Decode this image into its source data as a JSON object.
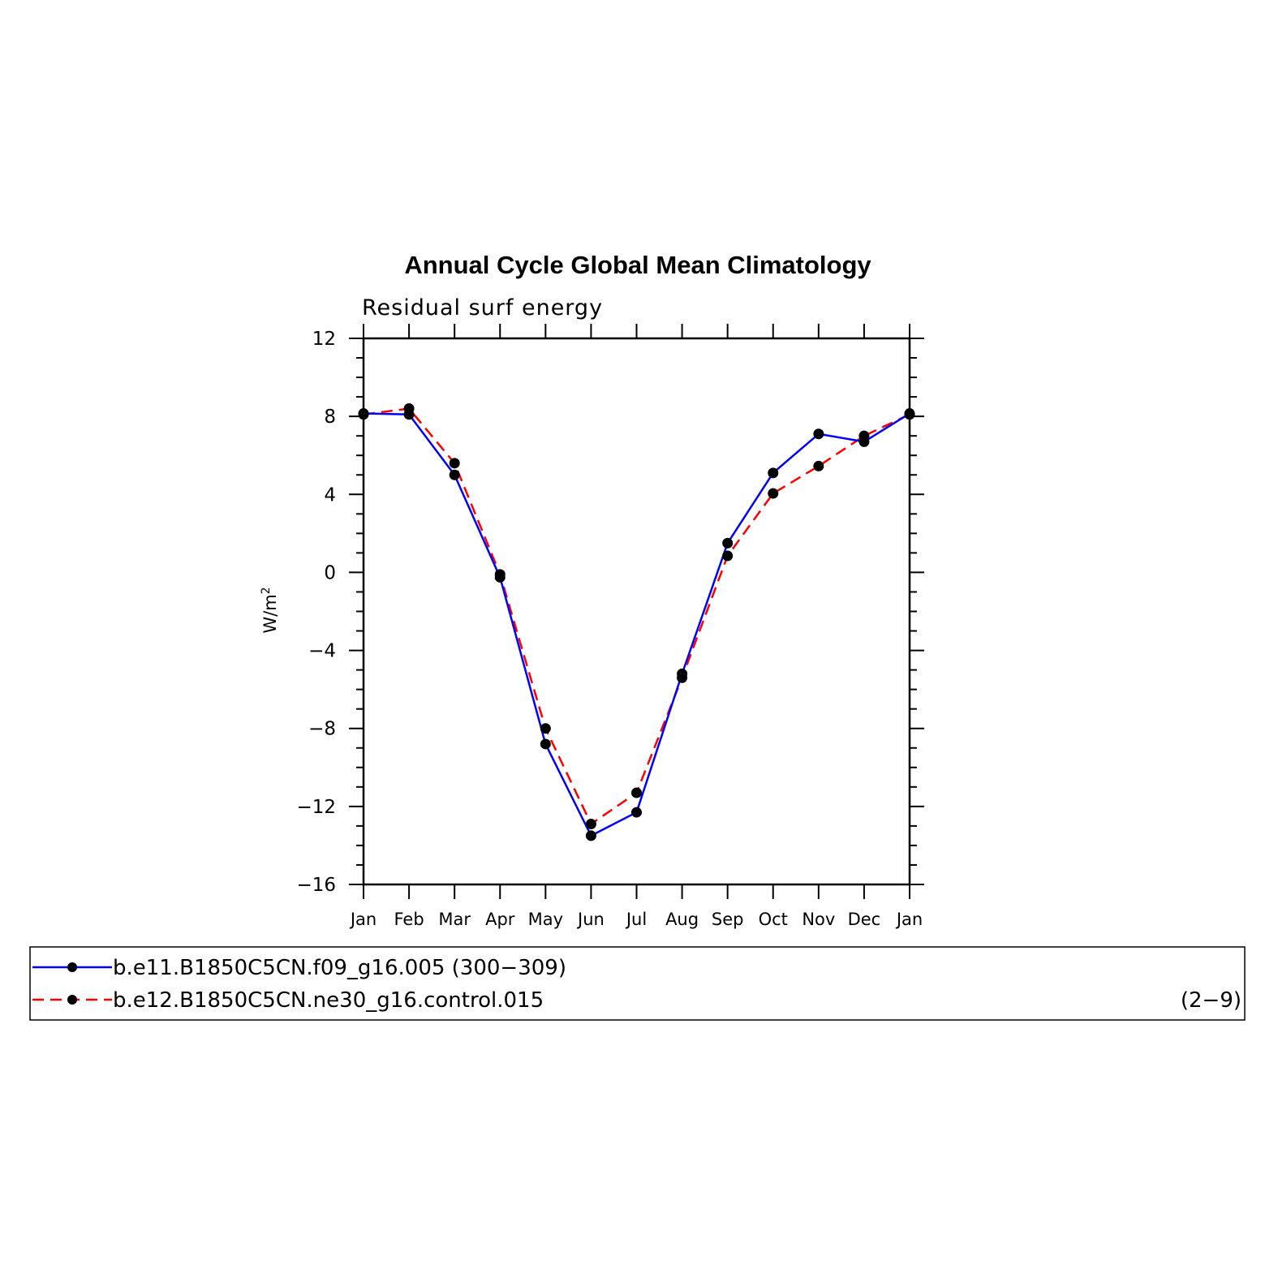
{
  "chart_data": {
    "type": "line",
    "title": "Annual Cycle Global Mean Climatology",
    "subtitle": "Residual surf energy",
    "ylabel": "W/m",
    "ylabel_superscript": "2",
    "xlabel": "",
    "ylim": [
      -16,
      12
    ],
    "yticks": [
      "12",
      "8",
      "4",
      "0",
      "−4",
      "−8",
      "−12",
      "−16"
    ],
    "ytick_values": [
      12,
      8,
      4,
      0,
      -4,
      -8,
      -12,
      -16
    ],
    "categories": [
      "Jan",
      "Feb",
      "Mar",
      "Apr",
      "May",
      "Jun",
      "Jul",
      "Aug",
      "Sep",
      "Oct",
      "Nov",
      "Dec",
      "Jan"
    ],
    "grid": false,
    "legend_position": "bottom",
    "series": [
      {
        "name": "b.e11.B1850C5CN.f09_g16.005 (300−309)",
        "color": "#0000ff",
        "dash": "solid",
        "marker": "filled-circle",
        "values": [
          8.15,
          8.1,
          5.0,
          -0.25,
          -8.8,
          -13.5,
          -12.3,
          -5.2,
          1.5,
          5.1,
          7.1,
          6.7,
          8.15
        ]
      },
      {
        "name": "b.e12.B1850C5CN.ne30_g16.control.015",
        "name_suffix": "(2−9)",
        "color": "#ff0000",
        "dash": "dashed",
        "marker": "filled-circle",
        "values": [
          8.1,
          8.4,
          5.6,
          -0.1,
          -8.0,
          -12.9,
          -11.3,
          -5.4,
          0.85,
          4.05,
          5.45,
          7.0,
          8.1
        ]
      }
    ]
  }
}
